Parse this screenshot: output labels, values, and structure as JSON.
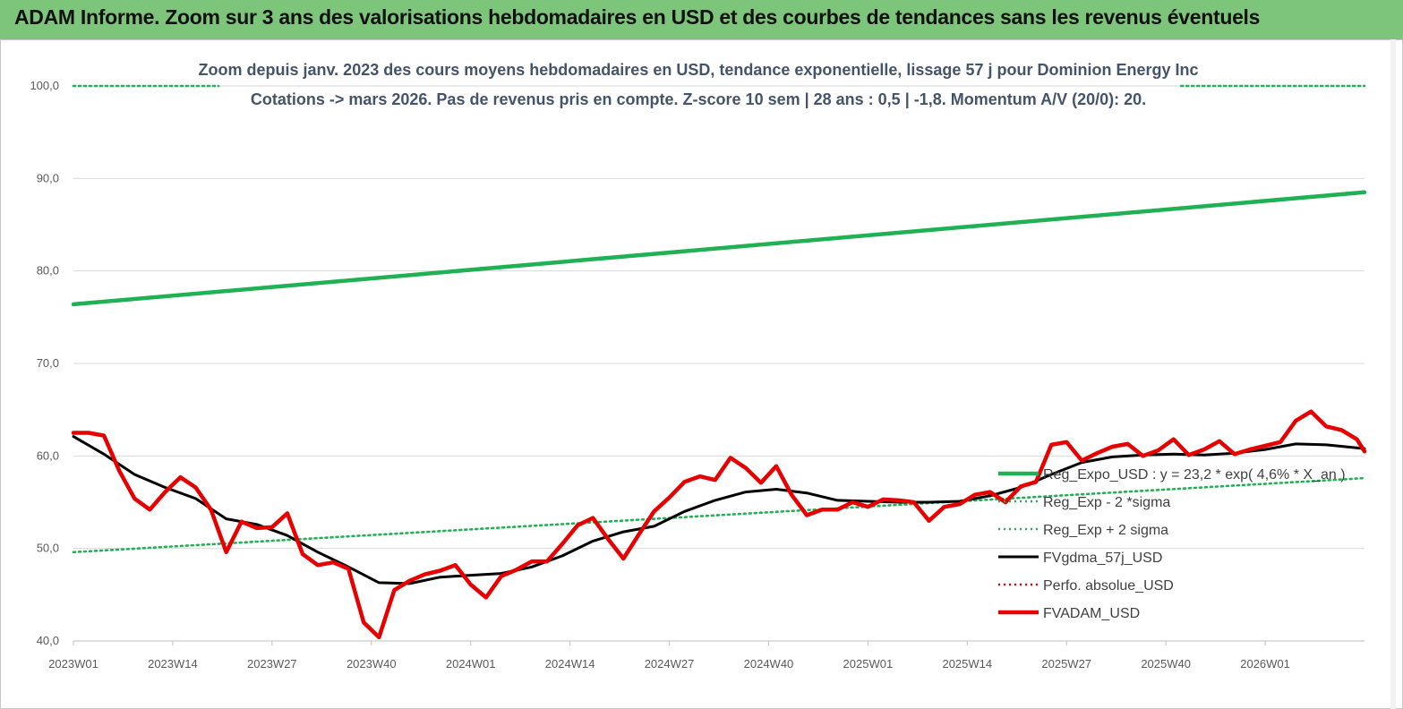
{
  "banner": {
    "title": "ADAM Informe. Zoom sur 3 ans des valorisations hebdomadaires en USD et des courbes de tendances sans les revenus éventuels"
  },
  "colors": {
    "banner_bg": "#7dc57a",
    "reg_exp": "#1fb154",
    "reg_exp_band": "#1fb154",
    "fvgdma": "#000000",
    "perfo": "#e60000",
    "fvadam": "#e60000"
  },
  "chart_data": {
    "type": "line",
    "title_line1": "Zoom depuis janv. 2023 des cours moyens hebdomadaires en USD, tendance exponentielle, lissage 57 j pour Dominion Energy Inc",
    "title_line2": "Cotations -> mars 2026. Pas de revenus pris en compte. Z-score 10 sem | 28 ans : 0,5 | -1,8. Momentum A/V (20/0): 20.",
    "xlabel": "",
    "ylabel": "",
    "ylim": [
      40,
      100
    ],
    "yticks": [
      "40,0",
      "50,0",
      "60,0",
      "70,0",
      "80,0",
      "90,0",
      "100,0"
    ],
    "x_ticks": [
      "2023W01",
      "2023W14",
      "2023W27",
      "2023W40",
      "2024W01",
      "2024W14",
      "2024W27",
      "2024W40",
      "2025W01",
      "2025W14",
      "2025W27",
      "2025W40",
      "2026W01"
    ],
    "weeks_total": 169,
    "grid": "horizontal",
    "legend_position": "right",
    "series": [
      {
        "name": "Reg_Expo_USD : y = 23,2 * exp( 4,6% * X_an )",
        "style": "solid-thick",
        "color": "#1fb154",
        "x": [
          0,
          169
        ],
        "y": [
          76.4,
          88.5
        ]
      },
      {
        "name": "Reg_Exp - 2 *sigma",
        "style": "dotted",
        "color": "#1fb154",
        "x": [
          0,
          169
        ],
        "y": [
          49.6,
          57.6
        ]
      },
      {
        "name": "Reg_Exp + 2 sigma",
        "style": "dotted",
        "color": "#1fb154",
        "x": [
          0,
          19,
          145,
          169
        ],
        "y": [
          100,
          100,
          100,
          100
        ],
        "visible_segments": [
          [
            0,
            19
          ],
          [
            145,
            169
          ]
        ]
      },
      {
        "name": "FVgdma_57j_USD",
        "style": "solid",
        "color": "#000000",
        "x": [
          0,
          4,
          8,
          12,
          16,
          20,
          24,
          28,
          32,
          36,
          40,
          44,
          48,
          52,
          56,
          60,
          64,
          68,
          72,
          76,
          80,
          84,
          88,
          92,
          96,
          100,
          104,
          108,
          112,
          116,
          120,
          124,
          128,
          132,
          136,
          140,
          144,
          148,
          152,
          156,
          160,
          164,
          169
        ],
        "y": [
          62.1,
          60.2,
          58.0,
          56.6,
          55.4,
          53.2,
          52.6,
          51.4,
          49.6,
          48.0,
          46.3,
          46.2,
          46.9,
          47.1,
          47.3,
          48.0,
          49.2,
          50.8,
          51.8,
          52.4,
          54.0,
          55.2,
          56.1,
          56.4,
          56.0,
          55.2,
          55.1,
          55.0,
          55.0,
          55.1,
          55.7,
          56.6,
          58.0,
          59.3,
          59.9,
          60.1,
          60.2,
          60.1,
          60.3,
          60.7,
          61.3,
          61.2,
          60.8
        ]
      },
      {
        "name": "Perfo. absolue_USD",
        "style": "dotted",
        "color": "#e60000",
        "x": [],
        "y": []
      },
      {
        "name": "FVADAM_USD",
        "style": "solid-thick",
        "color": "#e60000",
        "x": [
          0,
          2,
          4,
          6,
          8,
          10,
          12,
          14,
          16,
          18,
          20,
          22,
          24,
          26,
          28,
          30,
          32,
          34,
          36,
          38,
          40,
          42,
          44,
          46,
          48,
          50,
          52,
          54,
          56,
          58,
          60,
          62,
          64,
          66,
          68,
          70,
          72,
          74,
          76,
          78,
          80,
          82,
          84,
          86,
          88,
          90,
          92,
          94,
          96,
          98,
          100,
          102,
          104,
          106,
          108,
          110,
          112,
          114,
          116,
          118,
          120,
          122,
          124,
          126,
          128,
          130,
          132,
          134,
          136,
          138,
          140,
          142,
          144,
          146,
          148,
          150,
          152,
          154,
          156,
          158,
          160,
          162,
          164,
          166,
          168,
          169
        ],
        "y": [
          62.5,
          62.5,
          62.2,
          58.4,
          55.4,
          54.2,
          56.1,
          57.7,
          56.6,
          54.2,
          49.6,
          52.9,
          52.2,
          52.3,
          53.8,
          49.4,
          48.2,
          48.5,
          47.8,
          42.0,
          40.4,
          45.5,
          46.5,
          47.2,
          47.6,
          48.2,
          46.1,
          44.7,
          47.0,
          47.7,
          48.6,
          48.6,
          50.5,
          52.5,
          53.3,
          51.0,
          48.9,
          51.5,
          54.0,
          55.5,
          57.2,
          57.8,
          57.4,
          59.8,
          58.7,
          57.1,
          58.9,
          55.8,
          53.6,
          54.2,
          54.2,
          55.0,
          54.5,
          55.3,
          55.2,
          55.0,
          53.0,
          54.5,
          54.8,
          55.8,
          56.1,
          55.0,
          56.7,
          57.2,
          61.2,
          61.5,
          59.5,
          60.3,
          61.0,
          61.3,
          60.0,
          60.6,
          61.8,
          60.1,
          60.7,
          61.6,
          60.2,
          60.7,
          61.1,
          61.5,
          63.8,
          64.8,
          63.2,
          62.8,
          61.8,
          60.5
        ]
      }
    ]
  }
}
